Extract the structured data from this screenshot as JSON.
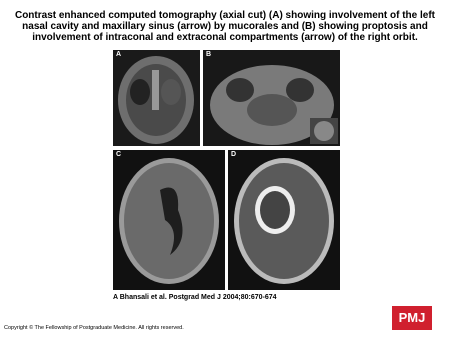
{
  "title": "Contrast enhanced computed tomography (axial cut) (A) showing involvement of the left nasal cavity and maxillary sinus (arrow) by mucorales and (B) showing proptosis and involvement of intraconal and extraconal compartments (arrow) of the right orbit.",
  "panels": [
    "A",
    "B",
    "C",
    "D"
  ],
  "citation": "A Bhansali et al. Postgrad Med J 2004;80:670-674",
  "copyright": "Copyright © The Fellowship of Postgraduate Medicine. All rights reserved.",
  "logo": "PMJ"
}
